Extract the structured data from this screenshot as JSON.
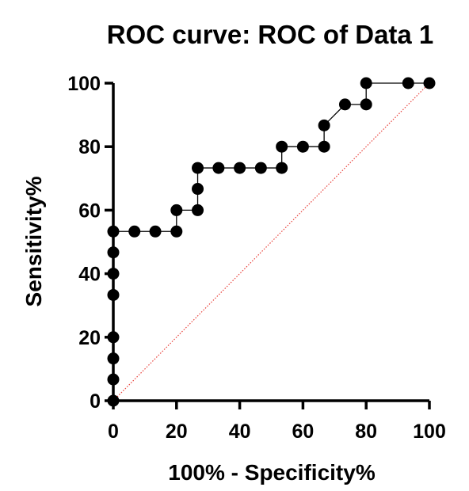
{
  "chart_data": {
    "type": "line",
    "title": "ROC curve: ROC of Data 1",
    "xlabel": "100% - Specificity%",
    "ylabel": "Sensitivity%",
    "xlim": [
      0,
      100
    ],
    "ylim": [
      0,
      100
    ],
    "x_ticks": [
      0,
      20,
      40,
      60,
      80,
      100
    ],
    "y_ticks": [
      0,
      20,
      40,
      60,
      80,
      100
    ],
    "grid": false,
    "colors": {
      "curve": "#000000",
      "reference_line": "#e8403a"
    },
    "series": [
      {
        "x": [
          0,
          0,
          0,
          0,
          0,
          0,
          0,
          0,
          6.7,
          13.3,
          20,
          20,
          26.7,
          26.7,
          26.7,
          33.3,
          40,
          46.7,
          53.3,
          53.3,
          60,
          66.7,
          66.7,
          73.3,
          80,
          80,
          93.3,
          100
        ],
        "y": [
          0,
          6.7,
          13.3,
          20,
          33.3,
          40,
          46.7,
          53.3,
          53.3,
          53.3,
          53.3,
          60,
          60,
          66.7,
          73.3,
          73.3,
          73.3,
          73.3,
          73.3,
          80,
          80,
          80,
          86.7,
          93.3,
          93.3,
          100,
          100,
          100
        ]
      }
    ],
    "reference_line": {
      "x": [
        0,
        100
      ],
      "y": [
        0,
        100
      ],
      "style": "dotted"
    }
  }
}
